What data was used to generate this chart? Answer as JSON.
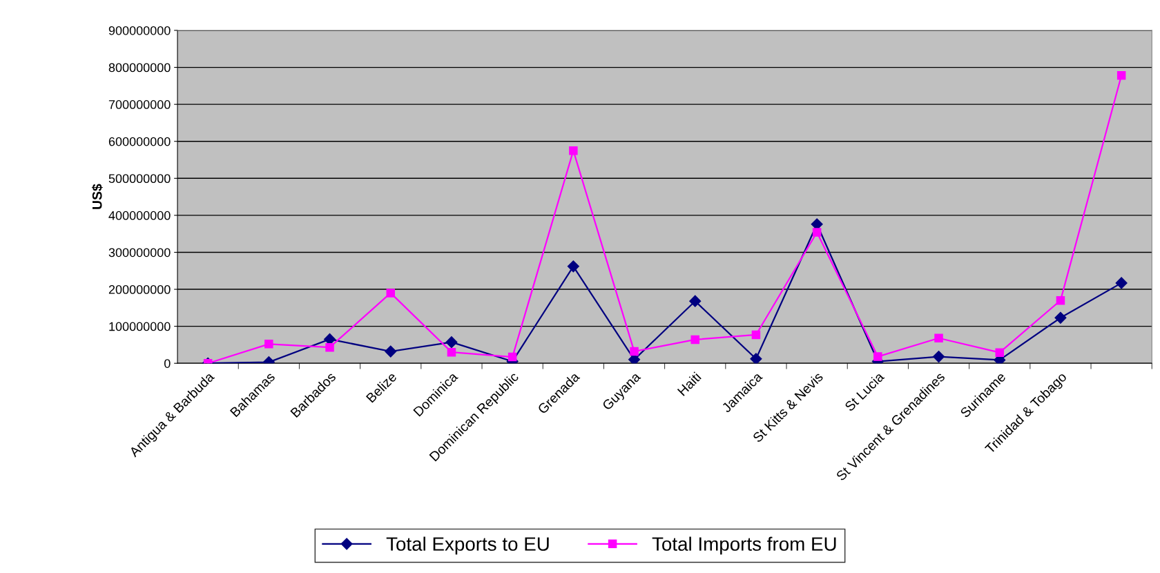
{
  "chart_data": {
    "type": "line",
    "ylabel": "US$",
    "categories": [
      "Antigua & Barbuda",
      "Bahamas",
      "Barbados",
      "Belize",
      "Dominica",
      "Dominican Republic",
      "Grenada",
      "Guyana",
      "Haiti",
      "Jamaica",
      "St Kitts & Nevis",
      "St Lucia",
      "St Vincent & Grenadines",
      "Suriname",
      "Trinidad & Tobago",
      null
    ],
    "series": [
      {
        "name": "Total Exports to EU",
        "color": "#000080",
        "marker": "diamond",
        "values": [
          0,
          3000000,
          65000000,
          32000000,
          57000000,
          5000000,
          262000000,
          10000000,
          168000000,
          12000000,
          376000000,
          5000000,
          18000000,
          9000000,
          123000000,
          217000000
        ]
      },
      {
        "name": "Total Imports from EU",
        "color": "#ff00ff",
        "marker": "square",
        "values": [
          0,
          52000000,
          43000000,
          190000000,
          30000000,
          17000000,
          575000000,
          32000000,
          64000000,
          77000000,
          354000000,
          18000000,
          68000000,
          29000000,
          170000000,
          778000000
        ]
      }
    ],
    "ylim": [
      0,
      900000000
    ],
    "yticks": [
      0,
      100000000,
      200000000,
      300000000,
      400000000,
      500000000,
      600000000,
      700000000,
      800000000,
      900000000
    ],
    "grid": "y",
    "legend": "bottom",
    "line_style": "solid"
  }
}
